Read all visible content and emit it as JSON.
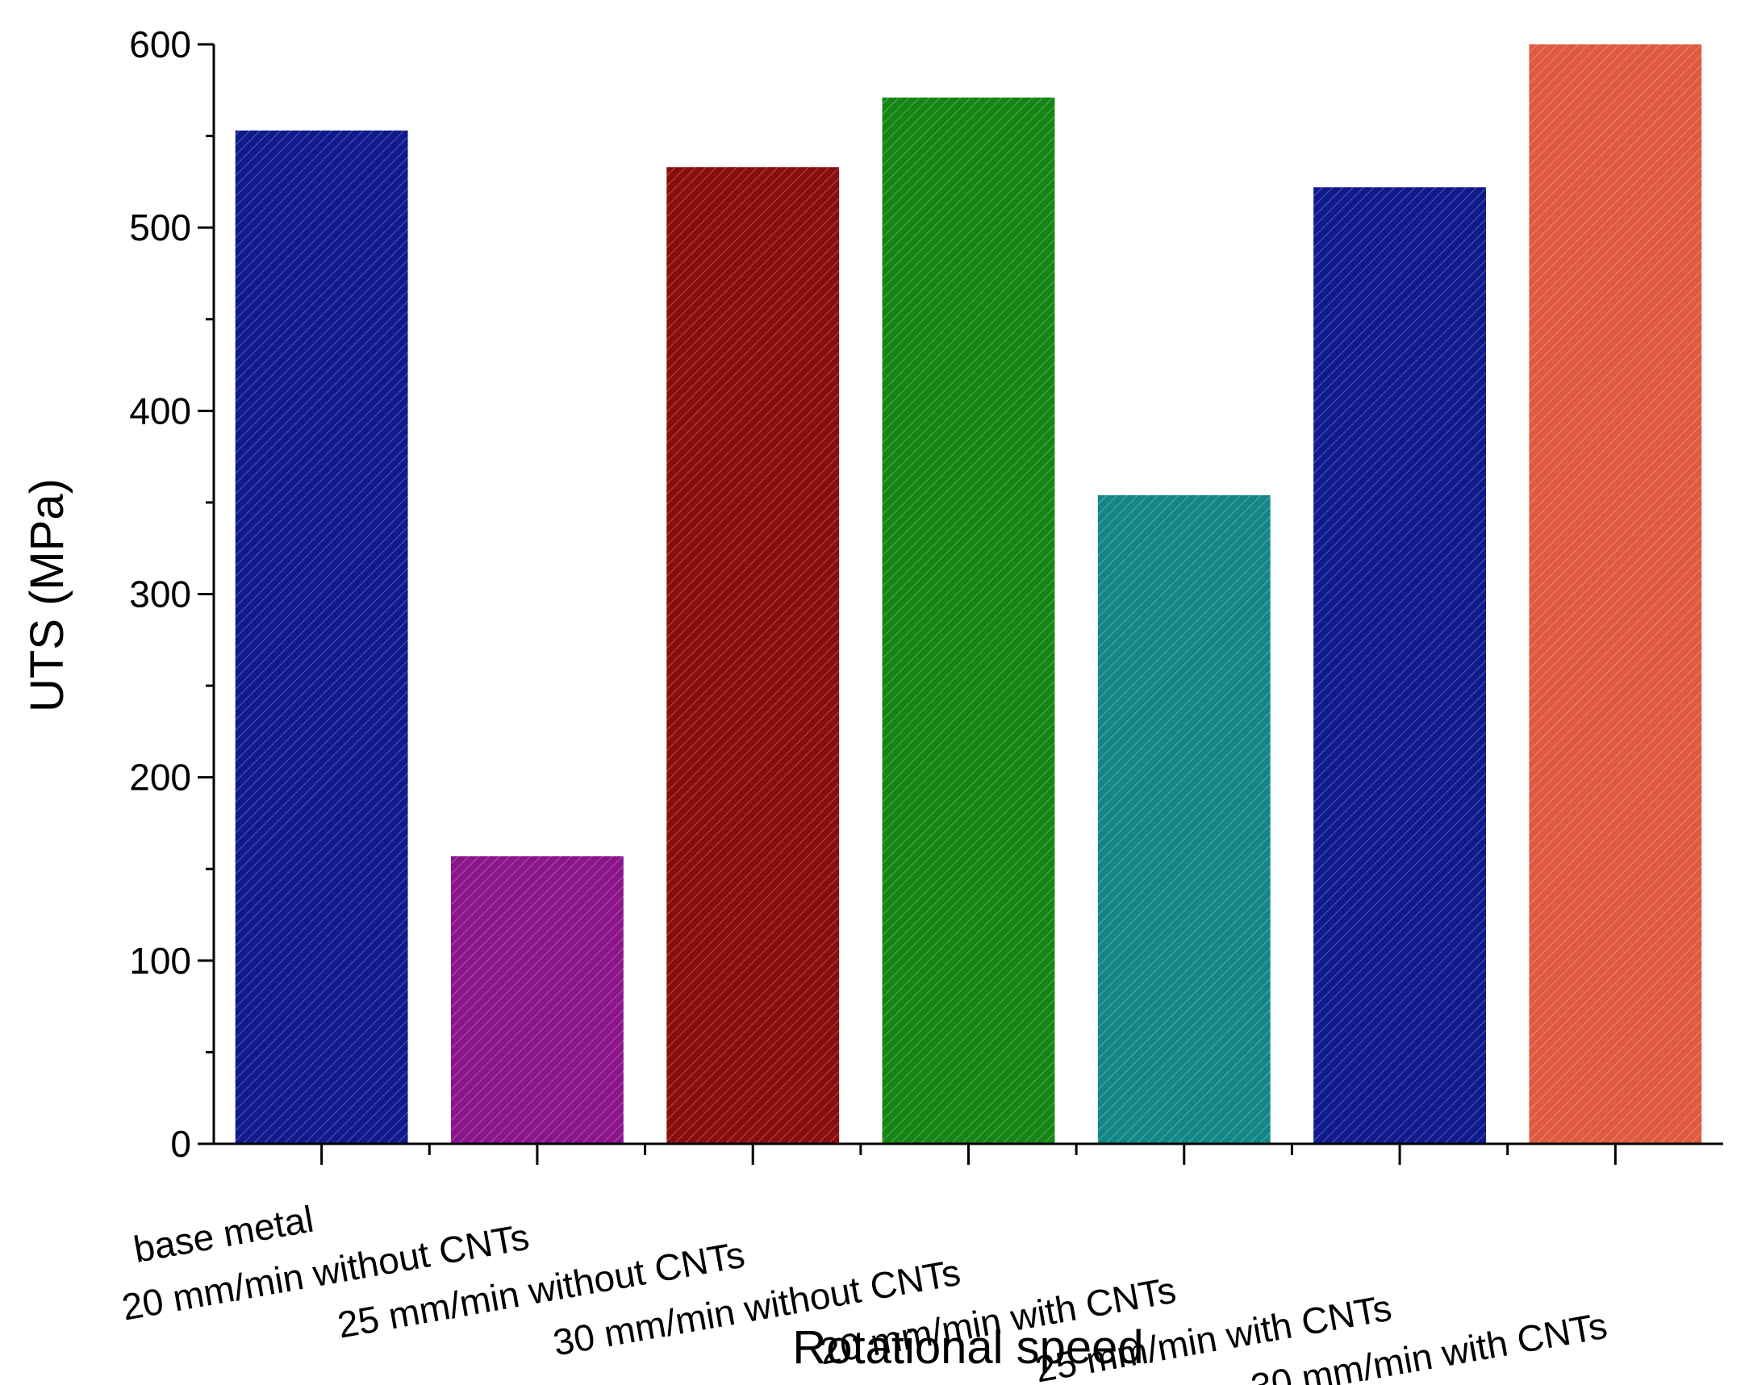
{
  "chart_data": {
    "type": "bar",
    "title": "",
    "xlabel": "Rotational speed",
    "ylabel": "UTS (MPa)",
    "ylim": [
      0,
      600
    ],
    "yticks": [
      0,
      100,
      200,
      300,
      400,
      500,
      600
    ],
    "y_minor_step": 50,
    "grid": false,
    "categories": [
      "base metal",
      "20 mm/min without CNTs",
      "25 mm/min without CNTs",
      "30 mm/min without CNTs",
      "20 mm/min with CNTs",
      "25 mm/min with CNTs",
      "30 mm/min with CNTs"
    ],
    "values": [
      553,
      157,
      533,
      571,
      354,
      522,
      600
    ],
    "colors": [
      "#101a8c",
      "#8b158b",
      "#8b0d0d",
      "#158515",
      "#138686",
      "#101a8c",
      "#e05a41"
    ],
    "bar_style": "diagonal hatching"
  }
}
